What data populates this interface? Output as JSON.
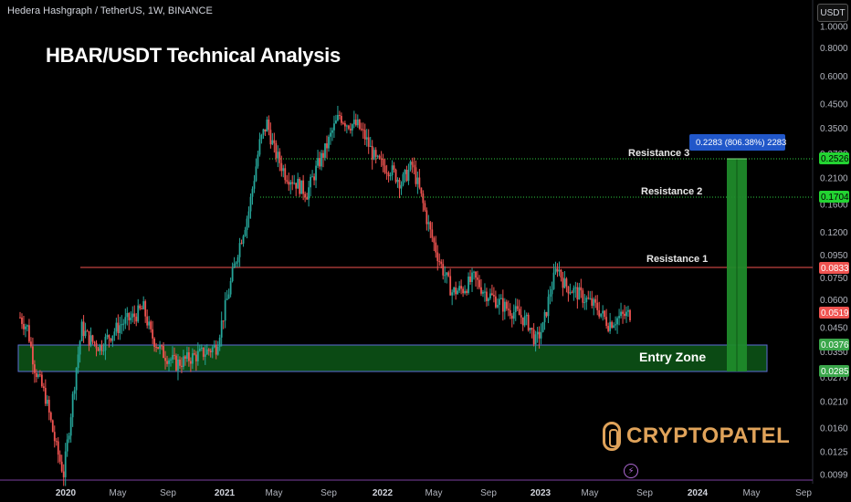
{
  "header": {
    "symbol_line": "Hedera Hashgraph / TetherUS, 1W, BINANCE",
    "currency_button": "USDT"
  },
  "title": "HBAR/USDT Technical Analysis",
  "watermark": "CRYPTOPATEL",
  "colors": {
    "background": "#000000",
    "up_candle": "#26a69a",
    "down_candle": "#ef5350",
    "resistance_line": "#ef5350",
    "resistance_dotted": "#2ecc40",
    "entry_zone_fill": "#0b4a14",
    "entry_zone_border": "#5b6bd6",
    "target_bar": "#1f8a2a",
    "logo": "#e0a35a",
    "measure_box": "#2157c9"
  },
  "icons": {
    "watermark_icon": "cryptopatel-logo-icon",
    "bolt_icon": "lightning-bolt-icon"
  },
  "chart_data": {
    "type": "candlestick",
    "title": "HBAR/USDT Technical Analysis",
    "scale": "log",
    "price_axis_ticks": [
      "1.0000",
      "0.8000",
      "0.6000",
      "0.4500",
      "0.3500",
      "0.2700",
      "0.2100",
      "0.1600",
      "0.1200",
      "0.0950",
      "0.0750",
      "0.0600",
      "0.0450",
      "0.0350",
      "0.0270",
      "0.0210",
      "0.0160",
      "0.0125",
      "0.0099"
    ],
    "time_axis_labels": [
      {
        "label": "2020",
        "bold": true
      },
      {
        "label": "May",
        "bold": false
      },
      {
        "label": "Sep",
        "bold": false
      },
      {
        "label": "2021",
        "bold": true
      },
      {
        "label": "May",
        "bold": false
      },
      {
        "label": "Sep",
        "bold": false
      },
      {
        "label": "2022",
        "bold": true
      },
      {
        "label": "May",
        "bold": false
      },
      {
        "label": "Sep",
        "bold": false
      },
      {
        "label": "2023",
        "bold": true
      },
      {
        "label": "May",
        "bold": false
      },
      {
        "label": "Sep",
        "bold": false
      },
      {
        "label": "2024",
        "bold": true
      },
      {
        "label": "May",
        "bold": false
      },
      {
        "label": "Sep",
        "bold": false
      }
    ],
    "levels": [
      {
        "name": "Resistance 3",
        "price": 0.2526,
        "label": "0.2526",
        "style": "dotted-green"
      },
      {
        "name": "Resistance 2",
        "price": 0.1704,
        "label": "0.1704",
        "style": "dotted-green"
      },
      {
        "name": "Resistance 1",
        "price": 0.0833,
        "label": "0.0833",
        "style": "solid-red"
      }
    ],
    "current_price": {
      "price": 0.0519,
      "label": "0.0519"
    },
    "entry_zone": {
      "name": "Entry Zone",
      "top": 0.0376,
      "bottom": 0.0285,
      "top_label": "0.0376",
      "bottom_label": "0.0285"
    },
    "measure_label": "0.2283 (806.38%) 2283",
    "candle_path_keypoints": [
      [
        0,
        0.05
      ],
      [
        4,
        0.045
      ],
      [
        8,
        0.03
      ],
      [
        14,
        0.022
      ],
      [
        20,
        0.013
      ],
      [
        24,
        0.01
      ],
      [
        27,
        0.016
      ],
      [
        31,
        0.03
      ],
      [
        34,
        0.045
      ],
      [
        38,
        0.04
      ],
      [
        44,
        0.037
      ],
      [
        50,
        0.042
      ],
      [
        56,
        0.047
      ],
      [
        62,
        0.05
      ],
      [
        68,
        0.055
      ],
      [
        72,
        0.042
      ],
      [
        78,
        0.035
      ],
      [
        86,
        0.031
      ],
      [
        94,
        0.033
      ],
      [
        102,
        0.035
      ],
      [
        108,
        0.037
      ],
      [
        114,
        0.06
      ],
      [
        120,
        0.1
      ],
      [
        126,
        0.15
      ],
      [
        132,
        0.3
      ],
      [
        136,
        0.37
      ],
      [
        140,
        0.28
      ],
      [
        146,
        0.22
      ],
      [
        152,
        0.2
      ],
      [
        158,
        0.18
      ],
      [
        164,
        0.24
      ],
      [
        168,
        0.28
      ],
      [
        172,
        0.34
      ],
      [
        176,
        0.4
      ],
      [
        180,
        0.37
      ],
      [
        186,
        0.36
      ],
      [
        190,
        0.32
      ],
      [
        196,
        0.25
      ],
      [
        204,
        0.23
      ],
      [
        210,
        0.2
      ],
      [
        216,
        0.24
      ],
      [
        220,
        0.185
      ],
      [
        226,
        0.12
      ],
      [
        232,
        0.085
      ],
      [
        238,
        0.065
      ],
      [
        244,
        0.067
      ],
      [
        250,
        0.075
      ],
      [
        256,
        0.065
      ],
      [
        262,
        0.06
      ],
      [
        268,
        0.055
      ],
      [
        274,
        0.052
      ],
      [
        280,
        0.047
      ],
      [
        284,
        0.039
      ],
      [
        288,
        0.045
      ],
      [
        292,
        0.065
      ],
      [
        296,
        0.085
      ],
      [
        300,
        0.07
      ],
      [
        306,
        0.065
      ],
      [
        312,
        0.06
      ],
      [
        318,
        0.055
      ],
      [
        324,
        0.047
      ],
      [
        330,
        0.05
      ],
      [
        336,
        0.052
      ]
    ]
  }
}
